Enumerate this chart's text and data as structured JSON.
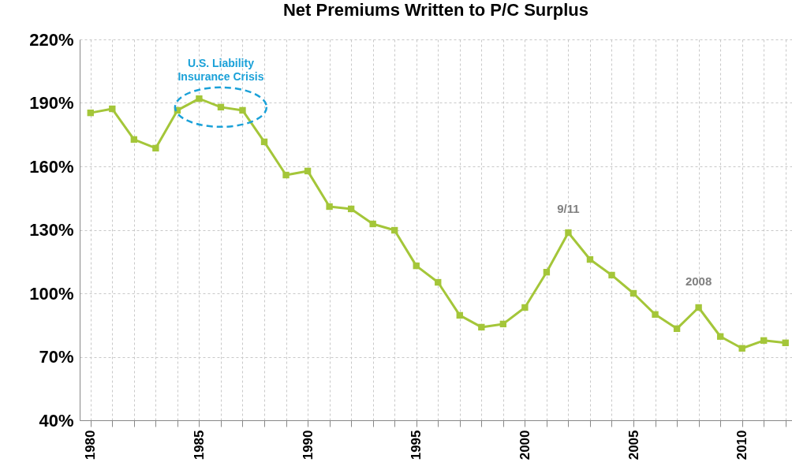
{
  "chart_data": {
    "type": "line",
    "title": "Net Premiums Written to P/C Surplus",
    "x": [
      1980,
      1981,
      1982,
      1983,
      1984,
      1985,
      1986,
      1987,
      1988,
      1989,
      1990,
      1991,
      1992,
      1993,
      1994,
      1995,
      1996,
      1997,
      1998,
      1999,
      2000,
      2001,
      2002,
      2003,
      2004,
      2005,
      2006,
      2007,
      2008,
      2009,
      2010,
      2011,
      2012
    ],
    "series": [
      {
        "color": "#a4c639",
        "values": [
          185.3,
          187.2,
          172.7,
          168.6,
          186.5,
          192,
          188,
          186.5,
          171.6,
          155.9,
          157.8,
          141,
          139.9,
          132.8,
          129.8,
          113,
          105.2,
          89.6,
          84,
          85.5,
          93.3,
          110,
          128.7,
          116,
          108.6,
          100,
          90,
          83.3,
          93.3,
          79.6,
          74,
          77.7,
          76.6
        ]
      }
    ],
    "xlim": [
      1979.5,
      2012.3
    ],
    "xticks": [
      1980,
      {
        "value": 1981,
        "label": null
      },
      {
        "value": 1982,
        "label": null
      },
      {
        "value": 1983,
        "label": null
      },
      {
        "value": 1984,
        "label": null
      },
      1985,
      {
        "value": 1986,
        "label": null
      },
      {
        "value": 1987,
        "label": null
      },
      {
        "value": 1988,
        "label": null
      },
      {
        "value": 1989,
        "label": null
      },
      1990,
      {
        "value": 1991,
        "label": null
      },
      {
        "value": 1992,
        "label": null
      },
      {
        "value": 1993,
        "label": null
      },
      {
        "value": 1994,
        "label": null
      },
      1995,
      {
        "value": 1996,
        "label": null
      },
      {
        "value": 1997,
        "label": null
      },
      {
        "value": 1998,
        "label": null
      },
      {
        "value": 1999,
        "label": null
      },
      2000,
      {
        "value": 2001,
        "label": null
      },
      {
        "value": 2002,
        "label": null
      },
      {
        "value": 2003,
        "label": null
      },
      {
        "value": 2004,
        "label": null
      },
      2005,
      {
        "value": 2006,
        "label": null
      },
      {
        "value": 2007,
        "label": null
      },
      {
        "value": 2008,
        "label": null
      },
      {
        "value": 2009,
        "label": null
      },
      2010,
      {
        "value": 2011,
        "label": null
      },
      {
        "value": 2012,
        "label": null
      }
    ],
    "ylim": [
      40,
      220
    ],
    "yticks": [
      {
        "value": 40,
        "label": "40%"
      },
      {
        "value": 70,
        "label": "70%"
      },
      {
        "value": 100,
        "label": "100%"
      },
      {
        "value": 130,
        "label": "130%"
      },
      {
        "value": 160,
        "label": "160%"
      },
      {
        "value": 190,
        "label": "190%"
      },
      {
        "value": 220,
        "label": "220%"
      }
    ],
    "annotations": [
      {
        "text": "U.S. Liability\nInsurance Crisis",
        "x": 1986,
        "y": 188
      },
      {
        "text": "9/11",
        "x": 2002,
        "y": 128.7
      },
      {
        "text": "2008",
        "x": 2008,
        "y": 93.3
      }
    ],
    "grid": true,
    "marker": "square",
    "line_style": "solid"
  }
}
